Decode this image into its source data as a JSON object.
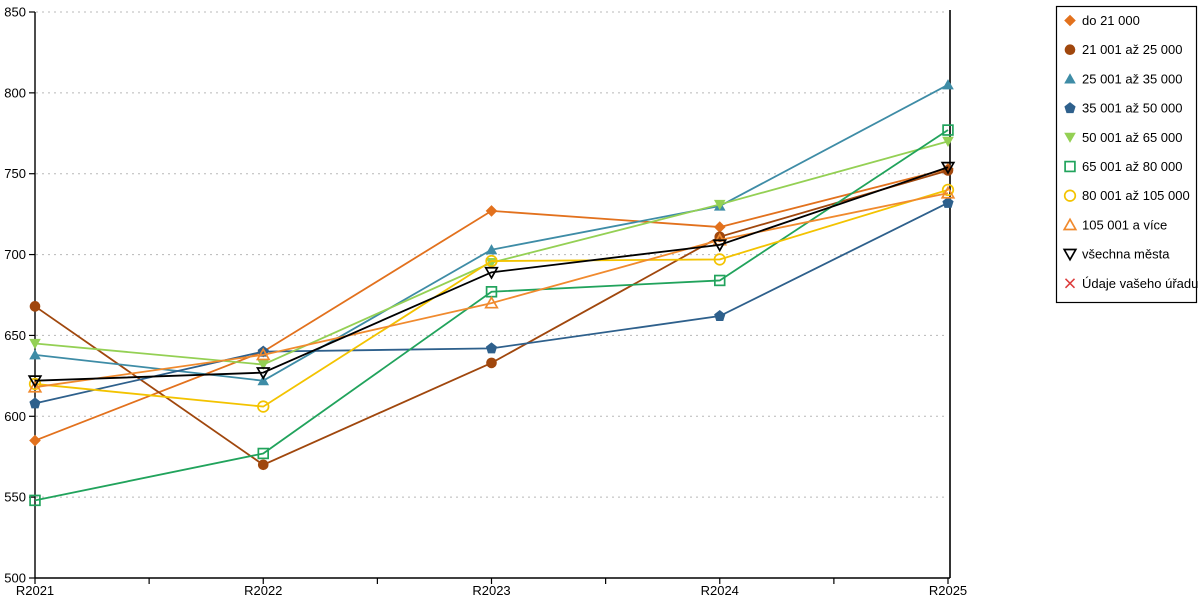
{
  "chart_data": {
    "type": "line",
    "title": "",
    "xlabel": "",
    "ylabel": "",
    "categories": [
      "R2021",
      "R2022",
      "R2023",
      "R2024",
      "R2025"
    ],
    "series": [
      {
        "name": "do 21 000",
        "color": "#E2711D",
        "marker": "diamond",
        "fill": "solid",
        "values": [
          585,
          640,
          727,
          717,
          753
        ]
      },
      {
        "name": "21 001 až 25 000",
        "color": "#A0470D",
        "marker": "circle",
        "fill": "solid",
        "values": [
          668,
          570,
          633,
          711,
          752
        ]
      },
      {
        "name": "25 001 až 35 000",
        "color": "#3E8CA6",
        "marker": "triangle-up",
        "fill": "solid",
        "values": [
          638,
          622,
          703,
          730,
          805
        ]
      },
      {
        "name": "35 001 až 50 000",
        "color": "#2E608C",
        "marker": "pentagon",
        "fill": "solid",
        "values": [
          608,
          640,
          642,
          662,
          732
        ]
      },
      {
        "name": "50 001 až 65 000",
        "color": "#94D054",
        "marker": "triangle-down",
        "fill": "solid",
        "values": [
          645,
          632,
          695,
          731,
          770
        ]
      },
      {
        "name": "65 001 až 80 000",
        "color": "#21A35C",
        "marker": "square",
        "fill": "open",
        "values": [
          548,
          577,
          677,
          684,
          777
        ]
      },
      {
        "name": "80 001 až 105 000",
        "color": "#F3C300",
        "marker": "circle",
        "fill": "open",
        "values": [
          620,
          606,
          696,
          697,
          740
        ]
      },
      {
        "name": "105 001 a více",
        "color": "#F08A2E",
        "marker": "triangle-up",
        "fill": "open",
        "values": [
          618,
          638,
          670,
          709,
          738
        ]
      },
      {
        "name": "všechna města",
        "color": "#000000",
        "marker": "triangle-down",
        "fill": "open",
        "values": [
          622,
          627,
          689,
          706,
          754
        ]
      },
      {
        "name": "Údaje vašeho úřadu",
        "color": "#DC3A3A",
        "marker": "x",
        "fill": "open",
        "values": []
      }
    ],
    "ylim": [
      500,
      850
    ],
    "ytick_step": 50,
    "y_tick_labels": [
      "500",
      "550",
      "600",
      "650",
      "700",
      "750",
      "800",
      "850"
    ],
    "grid": "horizontal-dashed",
    "grid_color": "#b8b8b8",
    "axis_color": "#000000",
    "legend_position": "right",
    "legend_border_color": "#000000",
    "background_color": "#ffffff"
  }
}
